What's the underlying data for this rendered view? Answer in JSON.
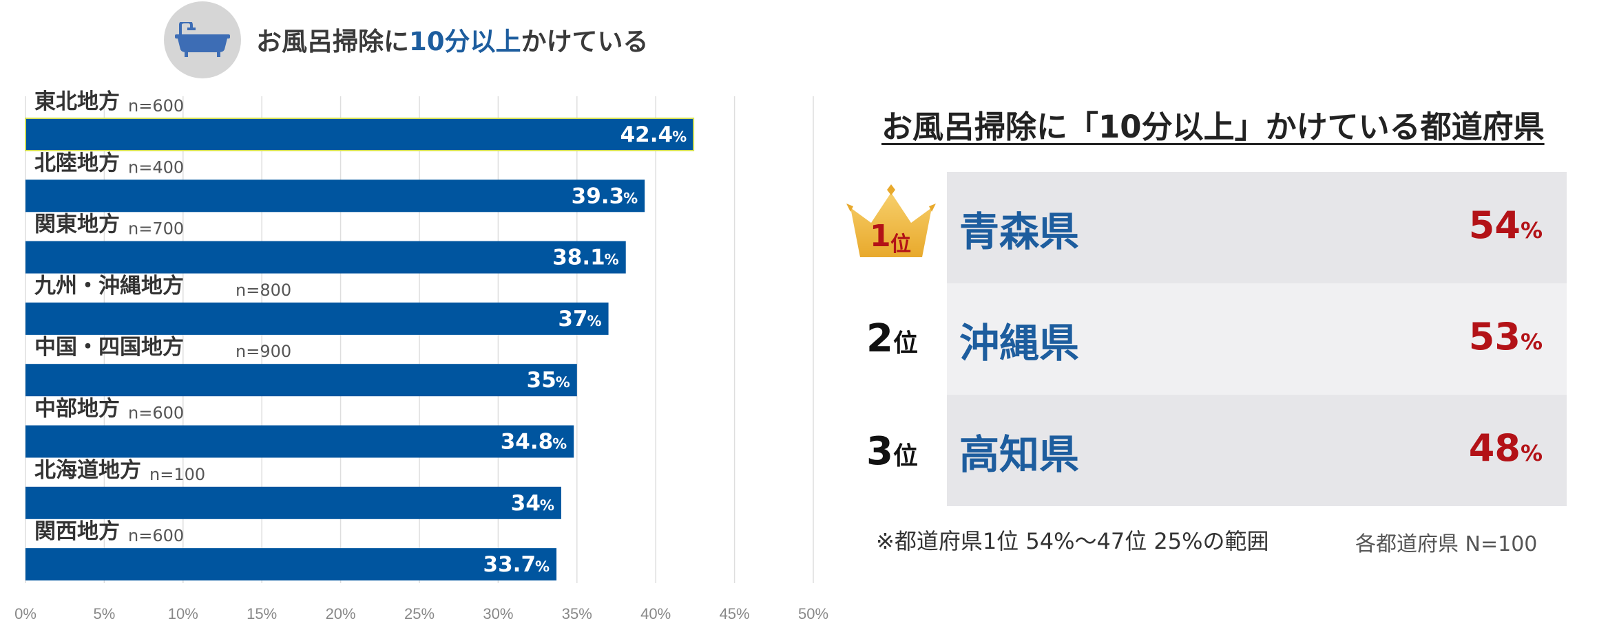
{
  "header": {
    "icon": "bathtub-icon",
    "headline_pre": "お風呂掃除に",
    "headline_highlight": "10分以上",
    "headline_post": "かけている"
  },
  "colors": {
    "bar": "#00559f",
    "accent_blue": "#1d5d9e",
    "accent_red": "#b31217",
    "highlight_outline": "#d4e157"
  },
  "chart_data": {
    "type": "bar",
    "orientation": "horizontal",
    "title": "",
    "xlabel": "",
    "ylabel": "",
    "xlim": [
      0,
      50
    ],
    "x_ticks": [
      0,
      5,
      10,
      15,
      20,
      25,
      30,
      35,
      40,
      45,
      50
    ],
    "x_tick_labels": [
      "0%",
      "5%",
      "10%",
      "15%",
      "20%",
      "25%",
      "30%",
      "35%",
      "40%",
      "45%",
      "50%"
    ],
    "grid": true,
    "categories": [
      "東北地方",
      "北陸地方",
      "関東地方",
      "九州・沖縄地方",
      "中国・四国地方",
      "中部地方",
      "北海道地方",
      "関西地方"
    ],
    "n_labels": [
      "n=600",
      "n=400",
      "n=700",
      "n=800",
      "n=900",
      "n=600",
      "n=100",
      "n=600"
    ],
    "values": [
      42.4,
      39.3,
      38.1,
      37,
      35,
      34.8,
      34,
      33.7
    ],
    "value_labels": [
      "42.4",
      "39.3",
      "38.1",
      "37",
      "35",
      "34.8",
      "34",
      "33.7"
    ],
    "value_unit": "%"
  },
  "ranking": {
    "title": "お風呂掃除に「10分以上」かけている都道府県",
    "rank_unit": "位",
    "items": [
      {
        "rank": "1",
        "name": "青森県",
        "value": "54",
        "unit": "%"
      },
      {
        "rank": "2",
        "name": "沖縄県",
        "value": "53",
        "unit": "%"
      },
      {
        "rank": "3",
        "name": "高知県",
        "value": "48",
        "unit": "%"
      }
    ],
    "footnote": "※都道府県1位 54%～47位 25%の範囲",
    "sample_note": "各都道府県 N=100"
  }
}
